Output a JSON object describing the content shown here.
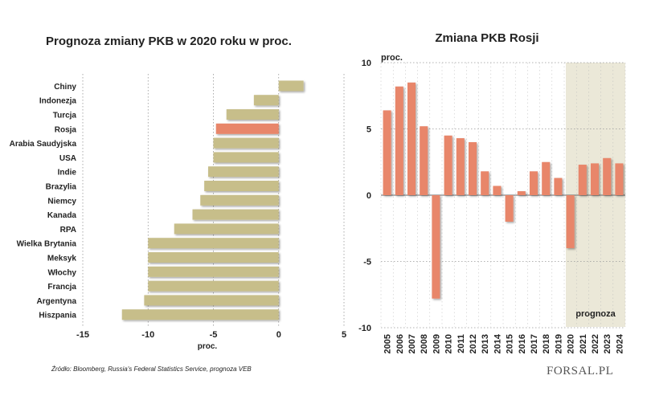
{
  "chart_data": [
    {
      "type": "bar",
      "orientation": "horizontal",
      "title": "Prognoza zmiany PKB w 2020 roku w proc.",
      "xlabel": "proc.",
      "xlim": [
        -15,
        5
      ],
      "xticks": [
        "-15",
        "-10",
        "-5",
        "0",
        "5"
      ],
      "categories": [
        "Chiny",
        "Indonezja",
        "Turcja",
        "Rosja",
        "Arabia Saudyjska",
        "USA",
        "Indie",
        "Brazylia",
        "Niemcy",
        "Kanada",
        "RPA",
        "Wielka Brytania",
        "Meksyk",
        "Włochy",
        "Francja",
        "Argentyna",
        "Hiszpania"
      ],
      "values": [
        1.9,
        -1.9,
        -4,
        -4.8,
        -5,
        -5,
        -5.4,
        -5.7,
        -6,
        -6.6,
        -8,
        -10,
        -10,
        -10,
        -10,
        -10.3,
        -12
      ],
      "highlight": "Rosja",
      "bar_color": "#c7be8a",
      "highlight_color": "#e8866b"
    },
    {
      "type": "bar",
      "title": "Zmiana PKB Rosji",
      "ylabel": "proc.",
      "ylim": [
        -10,
        10
      ],
      "yticks": [
        "10",
        "5",
        "0",
        "-5",
        "-10"
      ],
      "categories": [
        "2005",
        "2006",
        "2007",
        "2008",
        "2009",
        "2010",
        "2011",
        "2012",
        "2013",
        "2014",
        "2015",
        "2016",
        "2017",
        "2018",
        "2019",
        "2020",
        "2021",
        "2022",
        "2023",
        "2024"
      ],
      "values": [
        6.4,
        8.2,
        8.5,
        5.2,
        -7.8,
        4.5,
        4.3,
        4.0,
        1.8,
        0.7,
        -2.0,
        0.3,
        1.8,
        2.5,
        1.3,
        -4.0,
        2.3,
        2.4,
        2.8,
        2.4
      ],
      "forecast_label": "prognoza",
      "forecast_years": [
        "2020",
        "2021",
        "2022",
        "2023",
        "2024"
      ],
      "bar_color": "#e8866b",
      "forecast_bg": "#ebe8d8"
    }
  ],
  "footer": {
    "source": "Źródło:  Bloomberg,  Russia's Federal Statistics Service, prognoza VEB",
    "logo": "FORSAL.PL"
  }
}
